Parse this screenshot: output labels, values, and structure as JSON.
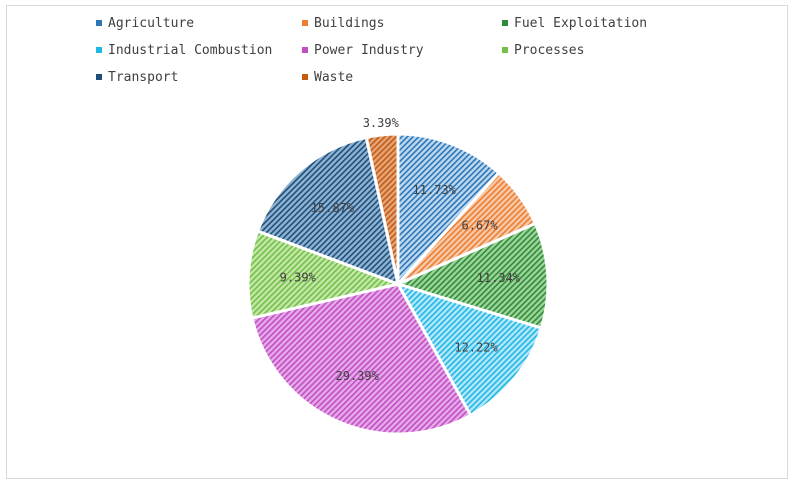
{
  "chart_data": {
    "type": "pie",
    "categories": [
      "Agriculture",
      "Buildings",
      "Fuel Exploitation",
      "Industrial Combustion",
      "Power Industry",
      "Processes",
      "Transport",
      "Waste"
    ],
    "values": [
      11.73,
      6.67,
      11.34,
      12.22,
      29.39,
      9.39,
      15.87,
      3.39
    ],
    "data_labels": [
      "11.73%",
      "6.67%",
      "11.34%",
      "12.22%",
      "29.39%",
      "9.39%",
      "15.87%",
      "3.39%"
    ],
    "colors": [
      "#2e75b6",
      "#ed7d31",
      "#2e8b3a",
      "#1fb7e6",
      "#c04fc4",
      "#70c04a",
      "#1f4e79",
      "#c55a11"
    ],
    "fill_colors": [
      "#bcd8f0",
      "#f6c9a9",
      "#9ed49a",
      "#b3e7f8",
      "#e6a9e8",
      "#c5e6a6",
      "#8fb3d3",
      "#e3a57a"
    ],
    "legend_position": "top",
    "fill_pattern": "diagonal-hatch"
  }
}
